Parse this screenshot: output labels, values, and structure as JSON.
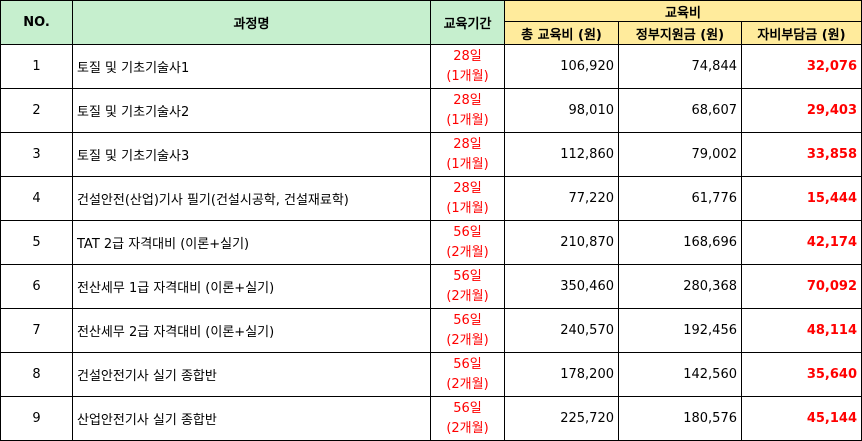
{
  "headers": {
    "no": "NO.",
    "course": "과정명",
    "period": "교육기간",
    "fee_group": "교육비",
    "total": "총 교육비 (원)",
    "gov": "정부지원금 (원)",
    "self": "자비부담금 (원)"
  },
  "rows": [
    {
      "no": "1",
      "course": "토질 및 기초기술사1",
      "days": "28일",
      "months": "(1개월)",
      "total": "106,920",
      "gov": "74,844",
      "self": "32,076"
    },
    {
      "no": "2",
      "course": "토질 및 기초기술사2",
      "days": "28일",
      "months": "(1개월)",
      "total": "98,010",
      "gov": "68,607",
      "self": "29,403"
    },
    {
      "no": "3",
      "course": "토질 및 기초기술사3",
      "days": "28일",
      "months": "(1개월)",
      "total": "112,860",
      "gov": "79,002",
      "self": "33,858"
    },
    {
      "no": "4",
      "course": "건설안전(산업)기사 필기(건설시공학, 건설재료학)",
      "days": "28일",
      "months": "(1개월)",
      "total": "77,220",
      "gov": "61,776",
      "self": "15,444"
    },
    {
      "no": "5",
      "course": "TAT 2급 자격대비 (이론+실기)",
      "days": "56일",
      "months": "(2개월)",
      "total": "210,870",
      "gov": "168,696",
      "self": "42,174"
    },
    {
      "no": "6",
      "course": "전산세무 1급 자격대비 (이론+실기)",
      "days": "56일",
      "months": "(2개월)",
      "total": "350,460",
      "gov": "280,368",
      "self": "70,092"
    },
    {
      "no": "7",
      "course": "전산세무 2급 자격대비 (이론+실기)",
      "days": "56일",
      "months": "(2개월)",
      "total": "240,570",
      "gov": "192,456",
      "self": "48,114"
    },
    {
      "no": "8",
      "course": "건설안전기사 실기 종합반",
      "days": "56일",
      "months": "(2개월)",
      "total": "178,200",
      "gov": "142,560",
      "self": "35,640"
    },
    {
      "no": "9",
      "course": "산업안전기사 실기 종합반",
      "days": "56일",
      "months": "(2개월)",
      "total": "225,720",
      "gov": "180,576",
      "self": "45,144"
    }
  ]
}
